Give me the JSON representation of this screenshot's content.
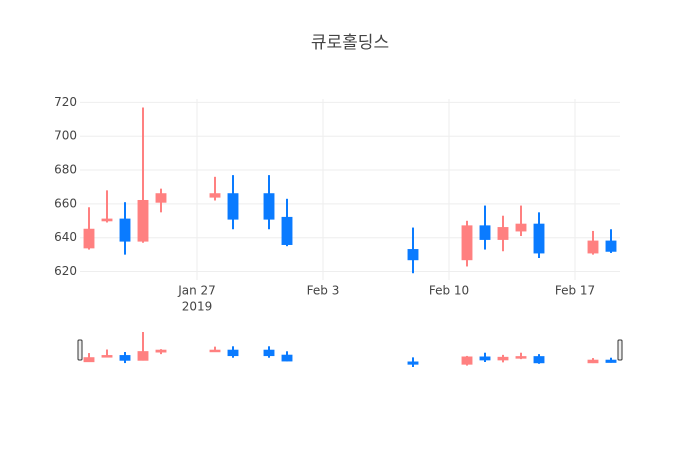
{
  "chart_data": {
    "type": "candlestick",
    "title": "큐로홀딩스",
    "x": [
      "2019-01-21",
      "2019-01-22",
      "2019-01-23",
      "2019-01-24",
      "2019-01-25",
      "2019-01-28",
      "2019-01-29",
      "2019-01-31",
      "2019-02-01",
      "2019-02-08",
      "2019-02-11",
      "2019-02-12",
      "2019-02-13",
      "2019-02-14",
      "2019-02-15",
      "2019-02-18",
      "2019-02-19"
    ],
    "open": [
      634,
      650,
      651,
      638,
      661,
      664,
      666,
      666,
      652,
      633,
      627,
      647,
      639,
      644,
      648,
      631,
      638
    ],
    "high": [
      658,
      668,
      661,
      717,
      669,
      676,
      677,
      677,
      663,
      646,
      650,
      659,
      653,
      659,
      655,
      644,
      645
    ],
    "low": [
      633,
      649,
      630,
      637,
      655,
      662,
      645,
      645,
      635,
      619,
      623,
      633,
      632,
      641,
      628,
      630,
      631
    ],
    "close": [
      645,
      651,
      638,
      662,
      666,
      666,
      651,
      651,
      636,
      627,
      647,
      639,
      646,
      648,
      631,
      638,
      632
    ],
    "increasing_color": "#ff8080",
    "decreasing_color": "#0a7bff",
    "xlim": [
      "2019-01-20 12:00",
      "2019-02-19 12:00"
    ],
    "xticks": [
      {
        "value": "2019-01-27",
        "label": "Jan 27"
      },
      {
        "value": "2019-02-03",
        "label": "Feb 3"
      },
      {
        "value": "2019-02-10",
        "label": "Feb 10"
      },
      {
        "value": "2019-02-17",
        "label": "Feb 17"
      }
    ],
    "x_year_label": "2019",
    "ylim": [
      615,
      722
    ],
    "yticks": [
      620,
      640,
      660,
      680,
      700,
      720
    ],
    "grid": true,
    "rangeslider": true
  }
}
